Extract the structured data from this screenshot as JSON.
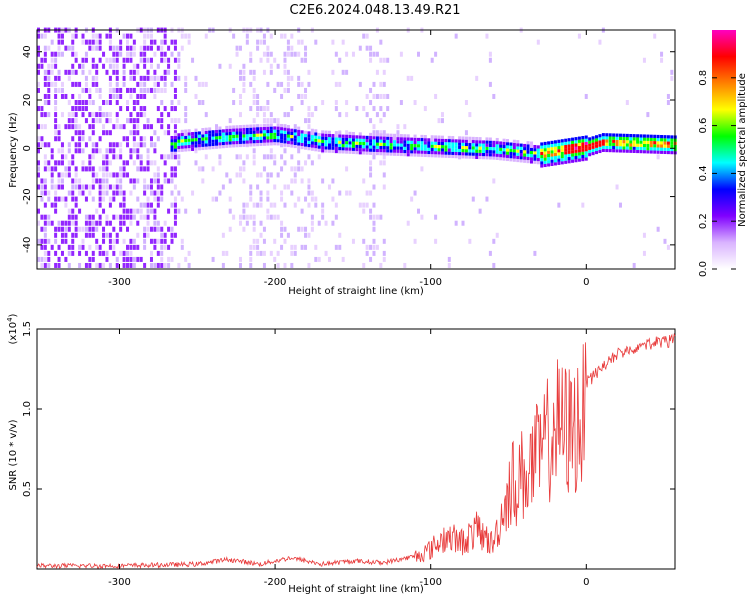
{
  "figure_title": "C2E6.2024.048.13.49.R21",
  "chart_data": [
    {
      "type": "heatmap",
      "xlabel": "Height of straight line (km)",
      "ylabel": "Frequency (Hz)",
      "xlim": [
        -353,
        57
      ],
      "ylim": [
        -50,
        49
      ],
      "xticks": [
        -300,
        -200,
        -100,
        0
      ],
      "yticks": [
        -40,
        -20,
        0,
        20,
        40
      ],
      "colorbar": {
        "label": "Normalized spectral amplitude",
        "range": [
          0,
          1
        ],
        "ticks": [
          "0.0",
          "0.2",
          "0.4",
          "0.6",
          "0.8"
        ],
        "colors": [
          "#ffffff",
          "#d9b3ff",
          "#8000ff",
          "#0000ff",
          "#00ffff",
          "#00ff00",
          "#ffff00",
          "#ff8000",
          "#ff0000",
          "#ff00c0"
        ]
      },
      "signal_band_center_hz": [
        {
          "x": -265,
          "y": 2
        },
        {
          "x": -230,
          "y": 4
        },
        {
          "x": -200,
          "y": 5
        },
        {
          "x": -170,
          "y": 2
        },
        {
          "x": -140,
          "y": 1
        },
        {
          "x": -100,
          "y": 0
        },
        {
          "x": -60,
          "y": -1
        },
        {
          "x": -30,
          "y": -3
        },
        {
          "x": 0,
          "y": 0
        },
        {
          "x": 10,
          "y": 2
        },
        {
          "x": 57,
          "y": 1
        }
      ]
    },
    {
      "type": "line",
      "xlabel": "Height of straight line (km)",
      "ylabel": "SNR (10 * v/v)",
      "y_multiplier": "(x10",
      "y_multiplier_exp": "4",
      "y_multiplier_close": ")",
      "xlim": [
        -353,
        57
      ],
      "ylim": [
        0,
        1.5
      ],
      "xticks": [
        -300,
        -200,
        -100,
        0
      ],
      "yticks": [
        "0.5",
        "1.0",
        "1.5"
      ],
      "series": [
        {
          "color": "#e83a3a",
          "points": [
            [
              -353,
              0.02
            ],
            [
              -300,
              0.02
            ],
            [
              -250,
              0.03
            ],
            [
              -230,
              0.06
            ],
            [
              -210,
              0.03
            ],
            [
              -190,
              0.07
            ],
            [
              -170,
              0.03
            ],
            [
              -150,
              0.05
            ],
            [
              -130,
              0.04
            ],
            [
              -110,
              0.08
            ],
            [
              -100,
              0.14
            ],
            [
              -90,
              0.25
            ],
            [
              -80,
              0.2
            ],
            [
              -70,
              0.3
            ],
            [
              -60,
              0.18
            ],
            [
              -50,
              0.6
            ],
            [
              -40,
              0.7
            ],
            [
              -30,
              0.85
            ],
            [
              -20,
              1.1
            ],
            [
              -10,
              1.05
            ],
            [
              0,
              1.2
            ],
            [
              10,
              1.3
            ],
            [
              20,
              1.38
            ],
            [
              30,
              1.42
            ],
            [
              40,
              1.45
            ],
            [
              50,
              1.46
            ],
            [
              57,
              1.47
            ]
          ]
        }
      ]
    }
  ]
}
